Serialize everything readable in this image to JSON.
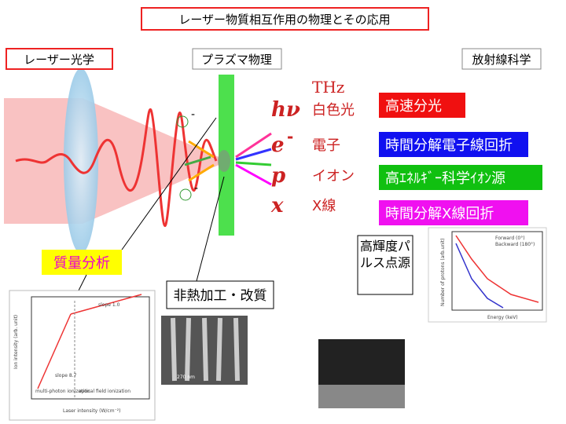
{
  "title": "レーザー物質相互作用の物理とその応用",
  "fields": {
    "laser_optics": "レーザー光学",
    "plasma_physics": "プラズマ物理",
    "radiation_science": "放射線科学"
  },
  "ion_charge": "-",
  "emissions": [
    {
      "symbol": "hν",
      "sup": "",
      "label_top": "THz",
      "label": "白色光"
    },
    {
      "symbol": "e",
      "sup": "-",
      "label": "電子"
    },
    {
      "symbol": "p",
      "sup": "",
      "label": "イオン"
    },
    {
      "symbol": "x",
      "sup": "",
      "label": "X線"
    }
  ],
  "applications": [
    "高速分光",
    "時間分解電子線回折",
    "高ｴﾈﾙｷﾞｰ科学ｲｵﾝ源",
    "時間分解X線回折"
  ],
  "mass_spectrometry": "質量分析",
  "nonthermal_processing": "非熱加工・改質",
  "bright_source": "高輝度パルス点源",
  "inset_ion": {
    "slope_1": "slope 1.0",
    "slope_2": "slope 8.7",
    "region_1": "multi-photon ionization",
    "region_2": "optical field ionization",
    "x_label": "Laser intensity (W/cm⁻²)",
    "y_label": "Ion intensity (arb. unit)"
  },
  "inset_sem": {
    "scale": "270 nm"
  },
  "inset_proton": {
    "legend_1": "Forward (0°)",
    "legend_2": "Backward (180°)",
    "x_label": "Energy (keV)",
    "y_label": "Number of protons (arb.unit)"
  }
}
